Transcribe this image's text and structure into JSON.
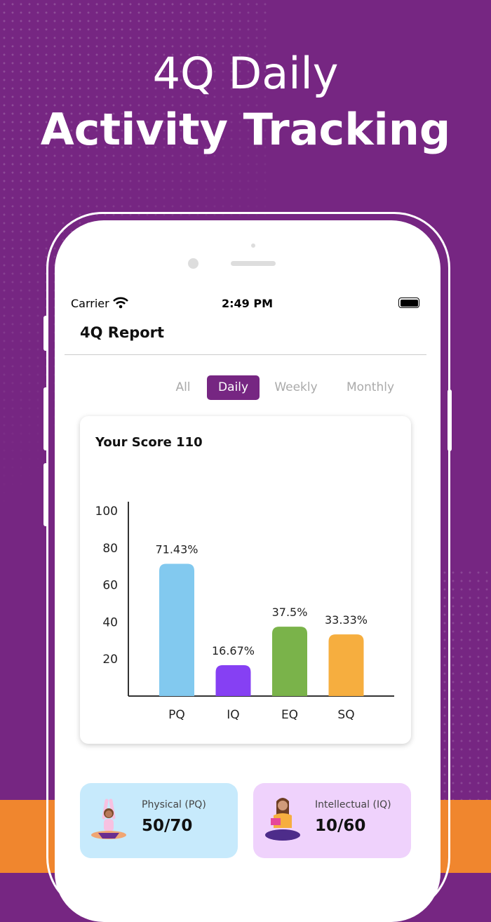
{
  "headline": {
    "line1": "4Q Daily",
    "line2": "Activity Tracking"
  },
  "status_bar": {
    "carrier": "Carrier",
    "time": "2:49 PM"
  },
  "header": {
    "title": "4Q Report"
  },
  "tabs": [
    {
      "label": "All"
    },
    {
      "label": "Daily",
      "active": true
    },
    {
      "label": "Weekly"
    },
    {
      "label": "Monthly"
    }
  ],
  "score_card": {
    "title": "Your Score 110"
  },
  "chart_data": {
    "type": "bar",
    "categories": [
      "PQ",
      "IQ",
      "EQ",
      "SQ"
    ],
    "values": [
      71.43,
      16.67,
      37.5,
      33.33
    ],
    "data_labels": [
      "71.43%",
      "16.67%",
      "37.5%",
      "33.33%"
    ],
    "colors": [
      "#82c9ef",
      "#8640f3",
      "#7ab34a",
      "#f6ae3f"
    ],
    "yticks": [
      "20",
      "40",
      "60",
      "80",
      "100"
    ],
    "ylim": [
      0,
      105
    ],
    "grid": false
  },
  "summary_cards": [
    {
      "label": "Physical (PQ)",
      "value": "50/70",
      "icon": "yoga-person-icon",
      "bg": "#c7eafc"
    },
    {
      "label": "Intellectual (IQ)",
      "value": "10/60",
      "icon": "reading-person-icon",
      "bg": "#efd2fc"
    }
  ],
  "colors": {
    "brand": "#762682",
    "accent_orange": "#f0862e"
  }
}
